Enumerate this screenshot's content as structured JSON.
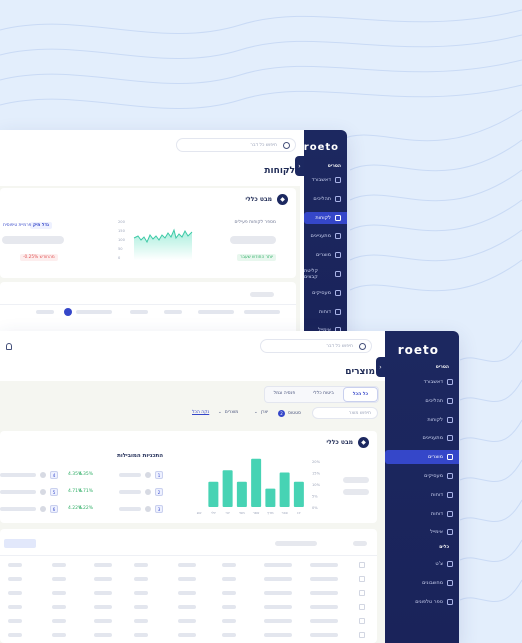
{
  "window_back": {
    "logo": "roeto",
    "section_label": "הסריס",
    "nav": [
      {
        "label": "דאשבורד",
        "icon": "home-icon"
      },
      {
        "label": "תהליכים",
        "icon": "process-icon"
      },
      {
        "label": "לקוחות",
        "icon": "users-icon",
        "active": true
      },
      {
        "label": "מתעניינים",
        "icon": "leads-icon"
      },
      {
        "label": "מוצרים",
        "icon": "products-icon"
      },
      {
        "label": "קליטת קבצים",
        "icon": "upload-icon"
      },
      {
        "label": "מעסיקים",
        "icon": "handshake-icon"
      },
      {
        "label": "דוחות",
        "icon": "report-icon"
      },
      {
        "label": "אימייל",
        "icon": "mail-icon"
      }
    ],
    "search_placeholder": "חיפוש כל דבר",
    "page_title": "לקוחות",
    "card_title": "מבט כללי",
    "active_clients_label": "מספר לקוחות פעילים",
    "y_ticks": [
      "200",
      "150",
      "100",
      "50",
      "0"
    ],
    "growth_badge": "יותר החודש שעבר",
    "decline_badge": "-0.25% מהחודש",
    "tag_status": "גדל תיק",
    "tag_type": "פרמיית טיפוסית"
  },
  "window_front": {
    "logo": "roeto",
    "section_main": "הסריס",
    "nav": [
      {
        "label": "דאשבורד",
        "icon": "home-icon"
      },
      {
        "label": "תהליכים",
        "icon": "process-icon"
      },
      {
        "label": "לקוחות",
        "icon": "users-icon"
      },
      {
        "label": "מתעניינים",
        "icon": "leads-icon"
      },
      {
        "label": "מוצרים",
        "icon": "products-icon",
        "active": true
      },
      {
        "label": "מעסיקים",
        "icon": "handshake-icon"
      },
      {
        "label": "דוחות",
        "icon": "report-icon"
      },
      {
        "label": "דוחות",
        "icon": "report2-icon"
      },
      {
        "label": "אימייל",
        "icon": "mail-icon"
      }
    ],
    "section_tools": "כלים",
    "tools_nav": [
      {
        "label": "צ'ט",
        "icon": "chat-icon"
      },
      {
        "label": "מחשבונים",
        "icon": "calculator-icon"
      },
      {
        "label": "ספר טלפונים",
        "icon": "phonebook-icon"
      }
    ],
    "search_placeholder": "חיפוש כל דבר",
    "page_title": "מוצרים",
    "tabs": [
      "כל הכל",
      "ביטוח כללי",
      "פנסיה וגמל"
    ],
    "product_search_placeholder": "חיפוש מוצר",
    "filter_status": "סטטוס",
    "filter_status_count": "2",
    "filter_company": "יצרן",
    "filter_products": "מוצרים",
    "clear_all": "נקה הכל",
    "card_title": "מבט כללי",
    "top_title": "התכניות המובילות",
    "top_rows": [
      {
        "rank": "1",
        "pct": "4.35%"
      },
      {
        "rank": "2",
        "pct": "4.71%"
      },
      {
        "rank": "3",
        "pct": "4.22%"
      }
    ],
    "top_side_rows": [
      {
        "rank": "4",
        "pct": "4.35%"
      },
      {
        "rank": "5",
        "pct": "4.71%"
      },
      {
        "rank": "6",
        "pct": "4.22%"
      }
    ],
    "bar_y_ticks": [
      "20%",
      "15%",
      "10%",
      "5%",
      "0%"
    ],
    "bar_months": [
      "אוג",
      "יולי",
      "יוני",
      "מאי",
      "אפר",
      "מרץ",
      "פבר",
      "ינו"
    ]
  },
  "chart_data": {
    "type": "bar",
    "categories": [
      "ינו",
      "פבר",
      "מרץ",
      "אפר",
      "מאי",
      "יוני",
      "יולי",
      "אוג"
    ],
    "values": [
      11,
      15,
      8,
      21,
      11,
      16,
      11,
      0
    ],
    "ylim": [
      0,
      20
    ],
    "title": "",
    "xlabel": "",
    "ylabel": ""
  },
  "colors": {
    "sidebar": "#1c2860",
    "active": "#3547c9",
    "bar": "#47d3b4",
    "green": "#2fae66",
    "red": "#e05454",
    "bg": "#e3eefc"
  }
}
